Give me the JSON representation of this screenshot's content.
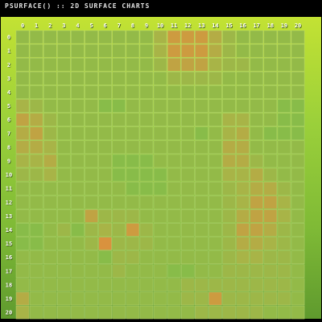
{
  "title": "PSURFACE() :: 2D SURFACE CHARTS",
  "colors": {
    "low": "#73c24a",
    "mid": "#a8b447",
    "high": "#e58a3c",
    "gridline": "#b8d67a",
    "tick_label": "#ffffff",
    "tick_label_shadow": "#3b5a12"
  },
  "chart_data": {
    "type": "heatmap",
    "x": [
      0,
      1,
      2,
      3,
      4,
      5,
      6,
      7,
      8,
      9,
      10,
      11,
      12,
      13,
      14,
      15,
      16,
      17,
      18,
      19,
      20
    ],
    "y": [
      0,
      1,
      2,
      3,
      4,
      5,
      6,
      7,
      8,
      9,
      10,
      11,
      12,
      13,
      14,
      15,
      16,
      17,
      18,
      19,
      20
    ],
    "x_ticks": [
      "0",
      "1",
      "2",
      "3",
      "4",
      "5",
      "6",
      "7",
      "8",
      "9",
      "10",
      "11",
      "12",
      "13",
      "14",
      "15",
      "16",
      "17",
      "18",
      "19",
      "20"
    ],
    "y_ticks": [
      "0",
      "1",
      "2",
      "3",
      "4",
      "5",
      "6",
      "7",
      "8",
      "9",
      "10",
      "11",
      "12",
      "13",
      "14",
      "15",
      "16",
      "17",
      "18",
      "19",
      "20"
    ],
    "value_range": [
      0,
      1
    ],
    "grid": true,
    "z": [
      [
        0.3,
        0.3,
        0.3,
        0.3,
        0.3,
        0.3,
        0.3,
        0.3,
        0.3,
        0.3,
        0.5,
        0.8,
        0.8,
        0.8,
        0.6,
        0.4,
        0.3,
        0.3,
        0.3,
        0.3,
        0.3
      ],
      [
        0.3,
        0.3,
        0.3,
        0.3,
        0.3,
        0.3,
        0.3,
        0.3,
        0.3,
        0.3,
        0.5,
        0.8,
        0.8,
        0.8,
        0.6,
        0.4,
        0.3,
        0.3,
        0.3,
        0.3,
        0.3
      ],
      [
        0.3,
        0.3,
        0.3,
        0.3,
        0.3,
        0.3,
        0.3,
        0.3,
        0.3,
        0.3,
        0.4,
        0.7,
        0.7,
        0.7,
        0.5,
        0.4,
        0.4,
        0.3,
        0.3,
        0.3,
        0.3
      ],
      [
        0.3,
        0.3,
        0.3,
        0.3,
        0.3,
        0.3,
        0.3,
        0.3,
        0.3,
        0.3,
        0.3,
        0.4,
        0.4,
        0.4,
        0.4,
        0.3,
        0.3,
        0.3,
        0.3,
        0.3,
        0.3
      ],
      [
        0.3,
        0.3,
        0.3,
        0.3,
        0.3,
        0.3,
        0.3,
        0.3,
        0.3,
        0.3,
        0.3,
        0.3,
        0.3,
        0.3,
        0.3,
        0.3,
        0.3,
        0.3,
        0.3,
        0.3,
        0.3
      ],
      [
        0.5,
        0.4,
        0.3,
        0.3,
        0.3,
        0.3,
        0.2,
        0.2,
        0.3,
        0.3,
        0.3,
        0.3,
        0.3,
        0.3,
        0.3,
        0.3,
        0.3,
        0.3,
        0.3,
        0.2,
        0.2
      ],
      [
        0.7,
        0.6,
        0.4,
        0.3,
        0.3,
        0.3,
        0.3,
        0.3,
        0.3,
        0.3,
        0.3,
        0.3,
        0.3,
        0.3,
        0.3,
        0.5,
        0.5,
        0.3,
        0.3,
        0.2,
        0.2
      ],
      [
        0.6,
        0.7,
        0.4,
        0.3,
        0.3,
        0.3,
        0.3,
        0.3,
        0.3,
        0.3,
        0.3,
        0.3,
        0.3,
        0.2,
        0.3,
        0.5,
        0.6,
        0.3,
        0.2,
        0.2,
        0.2
      ],
      [
        0.6,
        0.6,
        0.5,
        0.3,
        0.3,
        0.3,
        0.3,
        0.3,
        0.3,
        0.3,
        0.3,
        0.3,
        0.3,
        0.3,
        0.3,
        0.6,
        0.6,
        0.3,
        0.3,
        0.3,
        0.3
      ],
      [
        0.5,
        0.5,
        0.6,
        0.3,
        0.3,
        0.3,
        0.3,
        0.2,
        0.2,
        0.2,
        0.3,
        0.3,
        0.3,
        0.3,
        0.3,
        0.6,
        0.6,
        0.4,
        0.3,
        0.3,
        0.3
      ],
      [
        0.4,
        0.4,
        0.5,
        0.3,
        0.3,
        0.3,
        0.3,
        0.2,
        0.2,
        0.2,
        0.2,
        0.3,
        0.3,
        0.3,
        0.3,
        0.5,
        0.5,
        0.6,
        0.4,
        0.3,
        0.3
      ],
      [
        0.3,
        0.3,
        0.3,
        0.3,
        0.3,
        0.3,
        0.3,
        0.3,
        0.2,
        0.2,
        0.2,
        0.3,
        0.3,
        0.3,
        0.3,
        0.4,
        0.5,
        0.6,
        0.6,
        0.4,
        0.3
      ],
      [
        0.3,
        0.3,
        0.3,
        0.3,
        0.3,
        0.3,
        0.3,
        0.3,
        0.3,
        0.3,
        0.3,
        0.3,
        0.3,
        0.3,
        0.3,
        0.4,
        0.5,
        0.7,
        0.7,
        0.5,
        0.3
      ],
      [
        0.3,
        0.3,
        0.3,
        0.3,
        0.3,
        0.7,
        0.4,
        0.4,
        0.4,
        0.3,
        0.3,
        0.3,
        0.3,
        0.3,
        0.3,
        0.4,
        0.6,
        0.7,
        0.7,
        0.5,
        0.3
      ],
      [
        0.2,
        0.2,
        0.3,
        0.4,
        0.2,
        0.4,
        0.5,
        0.4,
        0.8,
        0.4,
        0.3,
        0.3,
        0.3,
        0.3,
        0.3,
        0.4,
        0.7,
        0.7,
        0.6,
        0.4,
        0.3
      ],
      [
        0.2,
        0.2,
        0.3,
        0.3,
        0.3,
        0.4,
        0.9,
        0.4,
        0.4,
        0.4,
        0.3,
        0.3,
        0.3,
        0.3,
        0.3,
        0.4,
        0.6,
        0.6,
        0.5,
        0.4,
        0.3
      ],
      [
        0.3,
        0.3,
        0.3,
        0.3,
        0.3,
        0.3,
        0.2,
        0.4,
        0.4,
        0.3,
        0.3,
        0.3,
        0.3,
        0.3,
        0.3,
        0.4,
        0.5,
        0.5,
        0.4,
        0.4,
        0.3
      ],
      [
        0.3,
        0.3,
        0.3,
        0.3,
        0.3,
        0.3,
        0.3,
        0.4,
        0.3,
        0.3,
        0.3,
        0.2,
        0.2,
        0.3,
        0.3,
        0.4,
        0.4,
        0.4,
        0.4,
        0.4,
        0.3
      ],
      [
        0.3,
        0.3,
        0.3,
        0.3,
        0.3,
        0.3,
        0.3,
        0.3,
        0.3,
        0.3,
        0.3,
        0.3,
        0.4,
        0.4,
        0.4,
        0.4,
        0.4,
        0.4,
        0.4,
        0.4,
        0.3
      ],
      [
        0.6,
        0.3,
        0.3,
        0.3,
        0.3,
        0.3,
        0.3,
        0.3,
        0.3,
        0.3,
        0.3,
        0.3,
        0.4,
        0.4,
        0.8,
        0.4,
        0.4,
        0.4,
        0.4,
        0.4,
        0.3
      ],
      [
        0.5,
        0.3,
        0.3,
        0.3,
        0.3,
        0.3,
        0.3,
        0.3,
        0.3,
        0.3,
        0.3,
        0.3,
        0.3,
        0.4,
        0.4,
        0.4,
        0.4,
        0.4,
        0.3,
        0.3,
        0.3
      ]
    ]
  }
}
